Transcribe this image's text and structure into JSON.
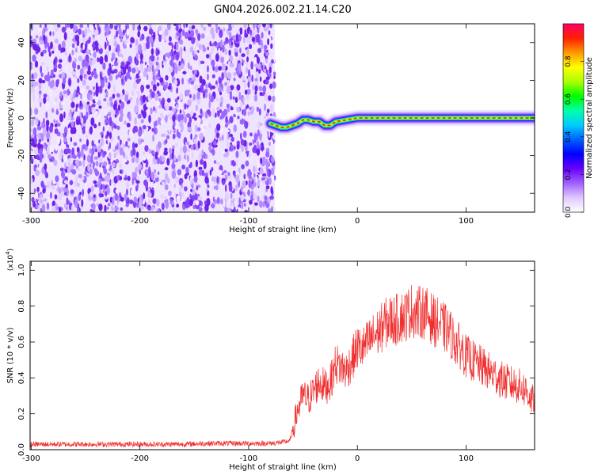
{
  "figure_title": "GN04.2026.002.21.14.C20",
  "colors": {
    "snr_line": "#f03030",
    "spectrum_ridge": "#e8342a",
    "noise_purple": "#7a1fe6"
  },
  "chart_data": [
    {
      "type": "heatmap",
      "title": "GN04.2026.002.21.14.C20",
      "xlabel": "Height of straight line (km)",
      "ylabel": "Frequency (Hz)",
      "xlim": [
        -301,
        163
      ],
      "ylim": [
        -50,
        50
      ],
      "x_ticks": [
        -300,
        -200,
        -100,
        0,
        100
      ],
      "y_ticks": [
        -40,
        -20,
        0,
        20,
        40
      ],
      "grid": false,
      "colorbar": {
        "label": "Normalized spectral amplitude",
        "range": [
          0,
          1
        ],
        "ticks": [
          0.0,
          0.2,
          0.4,
          0.6,
          0.8
        ],
        "colormap": [
          "#ffffff",
          "#e0c8ff",
          "#a060ff",
          "#6a00ff",
          "#0000ff",
          "#0060ff",
          "#00ccff",
          "#00ffaa",
          "#00ff00",
          "#aaff00",
          "#ffff00",
          "#ff9900",
          "#ff2000",
          "#ff0066"
        ]
      },
      "noise_region_x": [
        -301,
        -76
      ],
      "signal_ridge": {
        "x": [
          -80,
          -75,
          -70,
          -65,
          -60,
          -55,
          -50,
          -45,
          -40,
          -35,
          -30,
          -25,
          -20,
          -10,
          0,
          10,
          20,
          30,
          40,
          50,
          60,
          70,
          80,
          90,
          100,
          110,
          120,
          130,
          140,
          150,
          163
        ],
        "frequency": [
          -3,
          -4,
          -5,
          -5,
          -4,
          -3,
          -1,
          -1,
          -2,
          -2,
          -4,
          -4,
          -2,
          -1,
          0,
          0,
          0,
          0,
          0,
          0,
          0,
          0,
          0,
          0,
          0,
          0,
          0,
          0,
          0,
          0,
          0
        ]
      }
    },
    {
      "type": "line",
      "xlabel": "Height of straight line (km)",
      "ylabel": "SNR (10 * v/v)",
      "y_multiplier": "(x10^4)",
      "xlim": [
        -301,
        163
      ],
      "ylim": [
        0,
        1.05
      ],
      "x_ticks": [
        -300,
        -200,
        -100,
        0,
        100
      ],
      "y_ticks": [
        0.0,
        0.2,
        0.4,
        0.6,
        0.8,
        1.0
      ],
      "grid": false,
      "series": [
        {
          "x": [
            -301,
            -280,
            -260,
            -240,
            -220,
            -200,
            -180,
            -160,
            -140,
            -120,
            -100,
            -80,
            -70,
            -62,
            -55,
            -50,
            -45,
            -40,
            -35,
            -30,
            -25,
            -20,
            -15,
            -10,
            -5,
            0,
            5,
            10,
            15,
            20,
            25,
            30,
            35,
            40,
            45,
            50,
            55,
            60,
            65,
            70,
            75,
            80,
            85,
            90,
            95,
            100,
            105,
            110,
            115,
            120,
            125,
            130,
            135,
            140,
            145,
            150,
            155,
            160,
            163
          ],
          "values": [
            0.03,
            0.03,
            0.03,
            0.03,
            0.03,
            0.03,
            0.03,
            0.03,
            0.035,
            0.035,
            0.035,
            0.035,
            0.04,
            0.05,
            0.22,
            0.3,
            0.28,
            0.33,
            0.38,
            0.35,
            0.37,
            0.48,
            0.46,
            0.44,
            0.5,
            0.57,
            0.56,
            0.6,
            0.63,
            0.66,
            0.7,
            0.72,
            0.72,
            0.74,
            0.75,
            0.78,
            0.76,
            0.77,
            0.75,
            0.72,
            0.7,
            0.68,
            0.65,
            0.6,
            0.57,
            0.52,
            0.5,
            0.48,
            0.46,
            0.44,
            0.42,
            0.4,
            0.38,
            0.37,
            0.36,
            0.35,
            0.33,
            0.28,
            0.26
          ]
        }
      ]
    }
  ]
}
